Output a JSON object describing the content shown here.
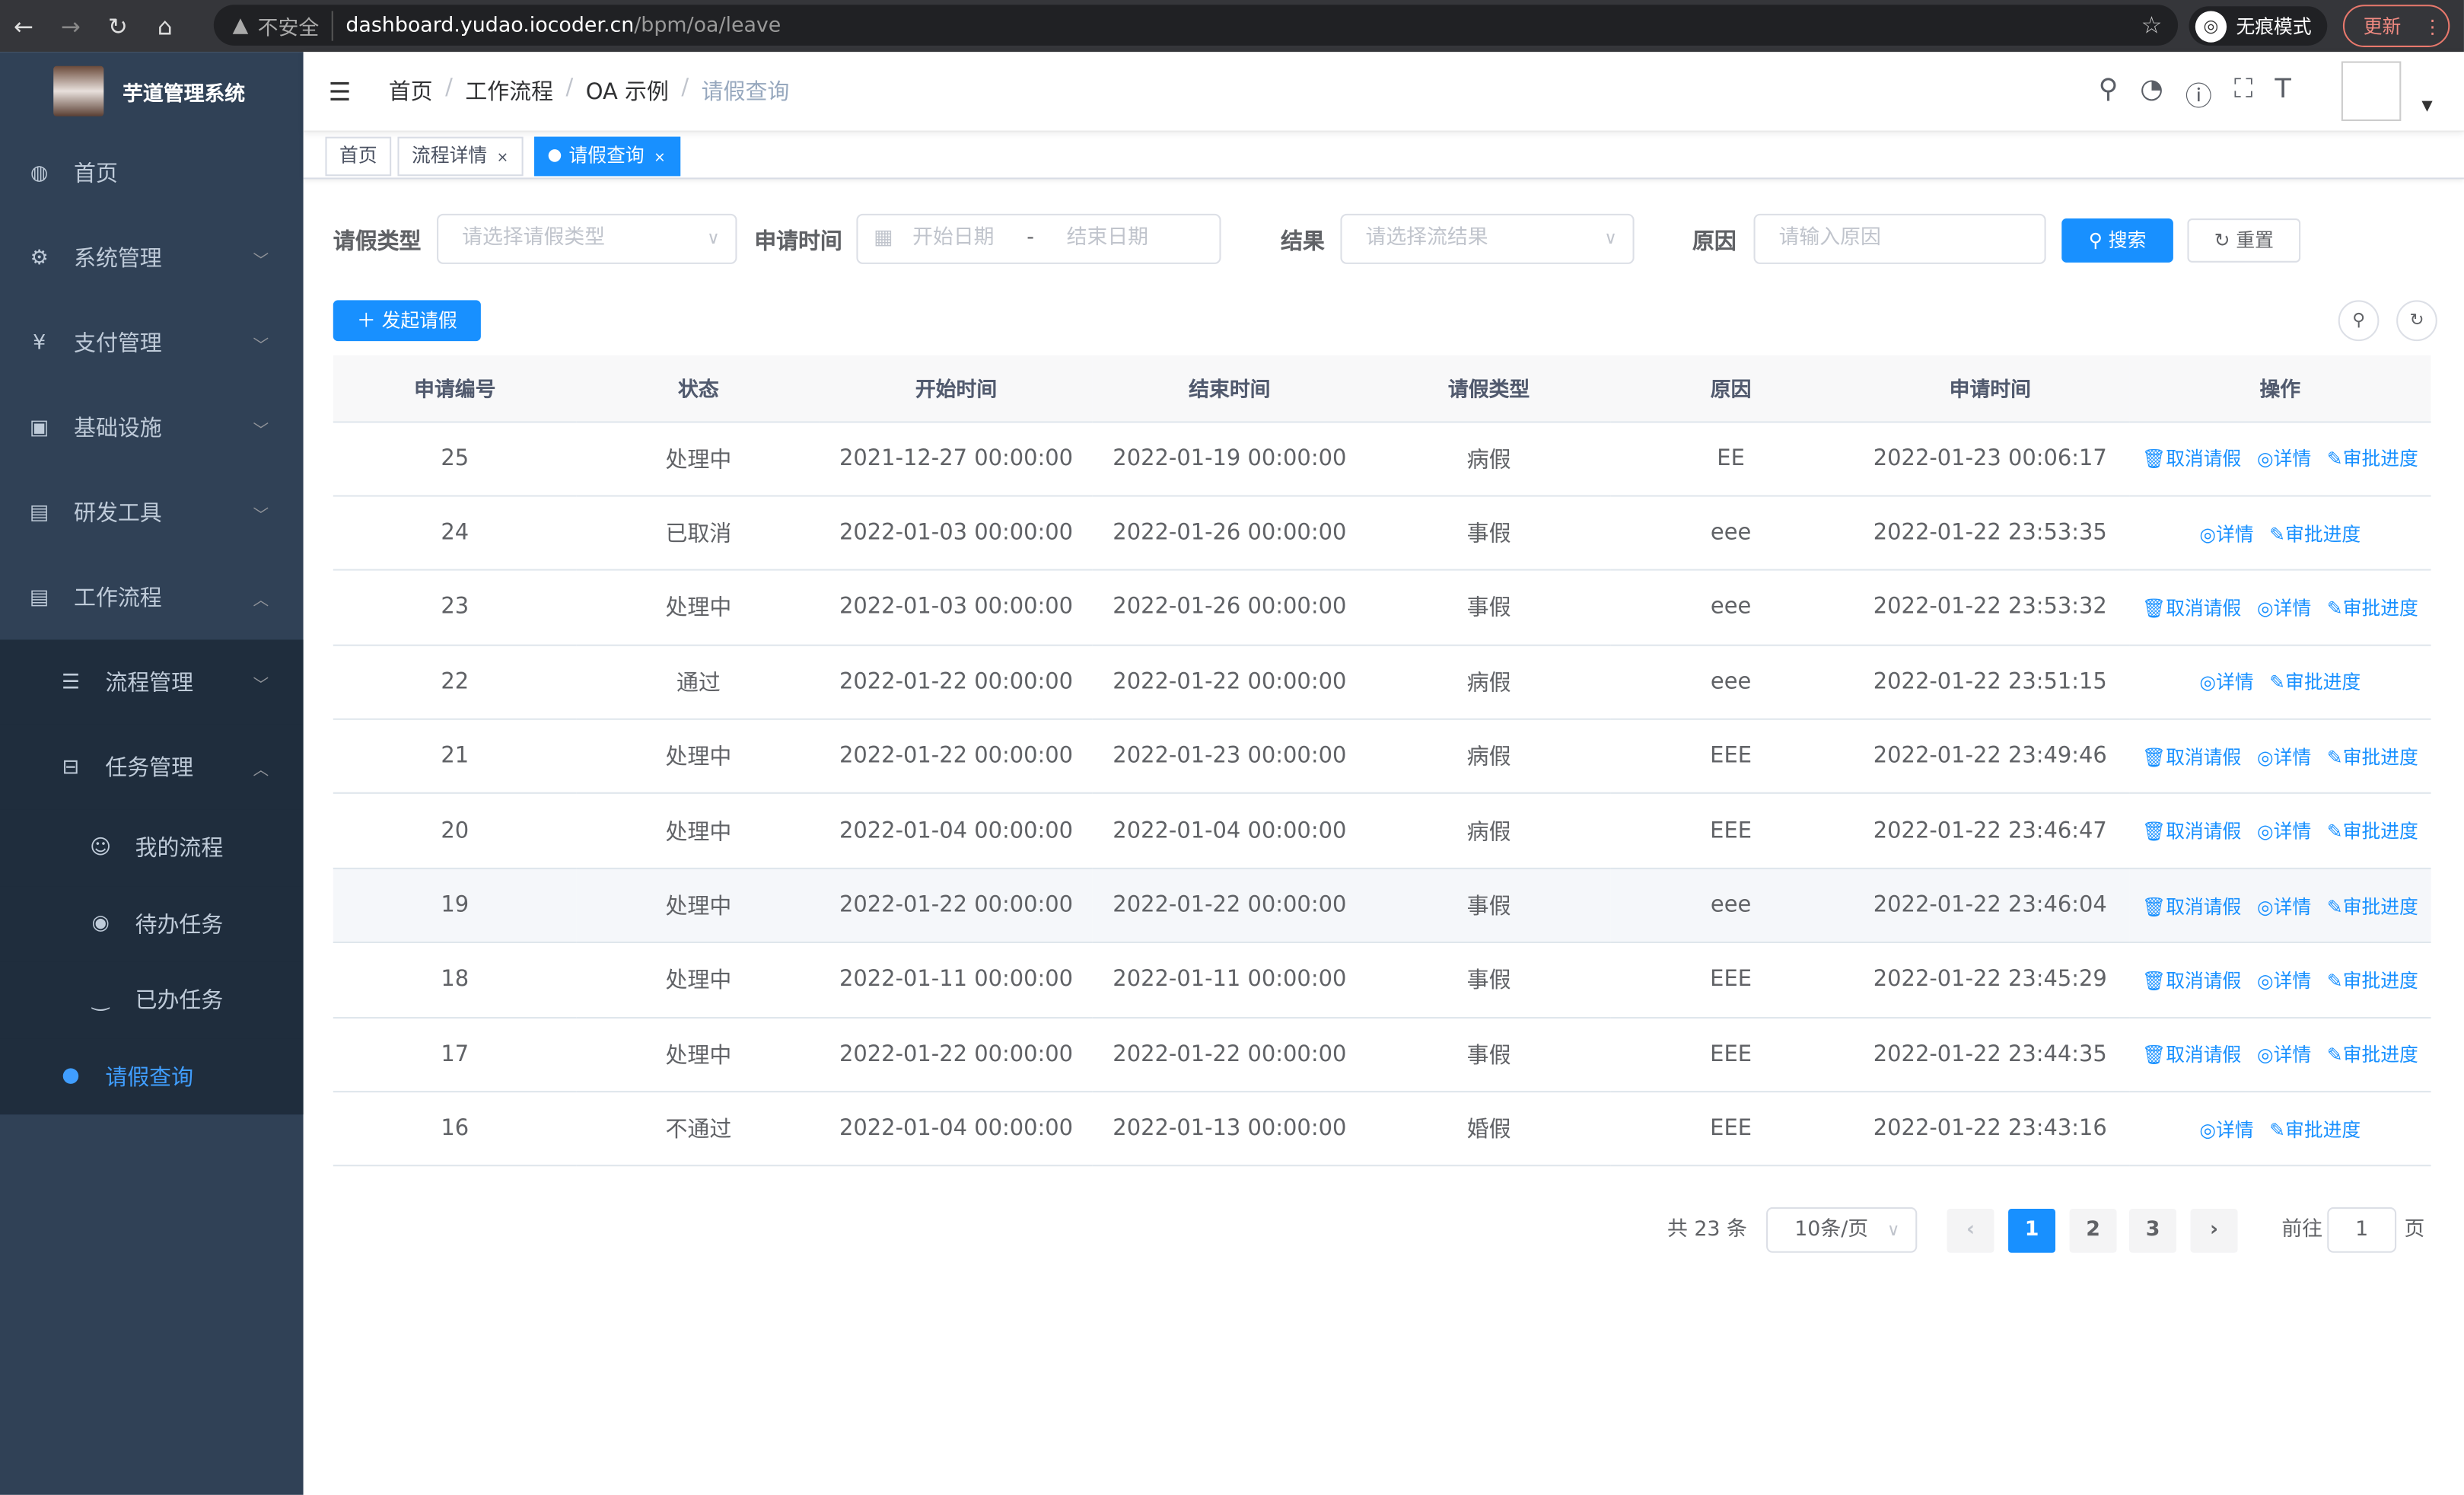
{
  "browser": {
    "security": "不安全",
    "host": "dashboard.yudao.iocoder.cn",
    "path": "/bpm/oa/leave",
    "incognito": "无痕模式",
    "update": "更新"
  },
  "app": {
    "title": "芋道管理系统"
  },
  "sidebar": {
    "items": [
      {
        "label": "首页",
        "icon": "dashboard-icon"
      },
      {
        "label": "系统管理",
        "icon": "gear-icon"
      },
      {
        "label": "支付管理",
        "icon": "yen-icon"
      },
      {
        "label": "基础设施",
        "icon": "monitor-icon"
      },
      {
        "label": "研发工具",
        "icon": "toolbox-icon"
      },
      {
        "label": "工作流程",
        "icon": "toolbox-icon"
      }
    ],
    "workflow": [
      {
        "label": "流程管理"
      },
      {
        "label": "任务管理"
      }
    ],
    "tasks": [
      {
        "label": "我的流程"
      },
      {
        "label": "待办任务"
      },
      {
        "label": "已办任务"
      }
    ],
    "active": "请假查询"
  },
  "breadcrumb": [
    "首页",
    "工作流程",
    "OA 示例",
    "请假查询"
  ],
  "tags": [
    {
      "label": "首页"
    },
    {
      "label": "流程详情"
    },
    {
      "label": "请假查询"
    }
  ],
  "filters": {
    "type_label": "请假类型",
    "type_placeholder": "请选择请假类型",
    "time_label": "申请时间",
    "start_placeholder": "开始日期",
    "range_sep": "-",
    "end_placeholder": "结束日期",
    "result_label": "结果",
    "result_placeholder": "请选择流结果",
    "reason_label": "原因",
    "reason_placeholder": "请输入原因",
    "search": "搜索",
    "reset": "重置"
  },
  "toolbar": {
    "add": "发起请假"
  },
  "table": {
    "headers": [
      "申请编号",
      "状态",
      "开始时间",
      "结束时间",
      "请假类型",
      "原因",
      "申请时间",
      "操作"
    ],
    "actions": {
      "cancel": "取消请假",
      "detail": "详情",
      "progress": "审批进度"
    },
    "rows": [
      [
        "25",
        "处理中",
        "2021-12-27 00:00:00",
        "2022-01-19 00:00:00",
        "病假",
        "EE",
        "2022-01-23 00:06:17",
        true
      ],
      [
        "24",
        "已取消",
        "2022-01-03 00:00:00",
        "2022-01-26 00:00:00",
        "事假",
        "eee",
        "2022-01-22 23:53:35",
        false
      ],
      [
        "23",
        "处理中",
        "2022-01-03 00:00:00",
        "2022-01-26 00:00:00",
        "事假",
        "eee",
        "2022-01-22 23:53:32",
        true
      ],
      [
        "22",
        "通过",
        "2022-01-22 00:00:00",
        "2022-01-22 00:00:00",
        "病假",
        "eee",
        "2022-01-22 23:51:15",
        false
      ],
      [
        "21",
        "处理中",
        "2022-01-22 00:00:00",
        "2022-01-23 00:00:00",
        "病假",
        "EEE",
        "2022-01-22 23:49:46",
        true
      ],
      [
        "20",
        "处理中",
        "2022-01-04 00:00:00",
        "2022-01-04 00:00:00",
        "病假",
        "EEE",
        "2022-01-22 23:46:47",
        true
      ],
      [
        "19",
        "处理中",
        "2022-01-22 00:00:00",
        "2022-01-22 00:00:00",
        "事假",
        "eee",
        "2022-01-22 23:46:04",
        true
      ],
      [
        "18",
        "处理中",
        "2022-01-11 00:00:00",
        "2022-01-11 00:00:00",
        "事假",
        "EEE",
        "2022-01-22 23:45:29",
        true
      ],
      [
        "17",
        "处理中",
        "2022-01-22 00:00:00",
        "2022-01-22 00:00:00",
        "事假",
        "EEE",
        "2022-01-22 23:44:35",
        true
      ],
      [
        "16",
        "不通过",
        "2022-01-04 00:00:00",
        "2022-01-13 00:00:00",
        "婚假",
        "EEE",
        "2022-01-22 23:43:16",
        false
      ]
    ]
  },
  "pagination": {
    "total": "共 23 条",
    "page_size": "10条/页",
    "pages": [
      "1",
      "2",
      "3"
    ],
    "current": "1",
    "goto": "前往",
    "goto_value": "1",
    "page_unit": "页"
  },
  "colors": {
    "primary": "#1890ff",
    "sidebar": "#304156"
  }
}
